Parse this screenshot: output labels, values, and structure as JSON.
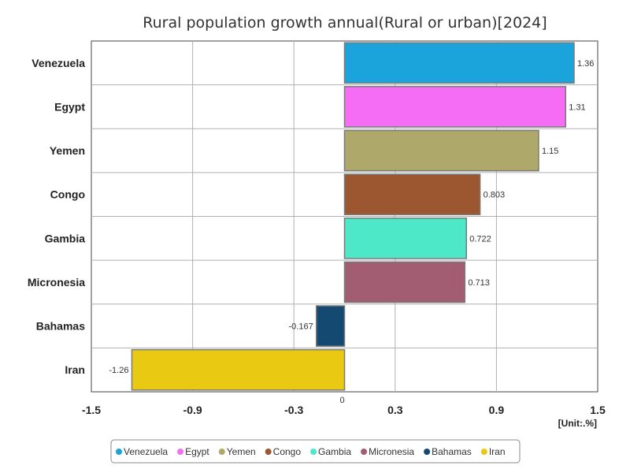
{
  "chart_data": {
    "type": "bar",
    "orientation": "horizontal",
    "title": "Rural population growth annual(Rural or urban)[2024]",
    "unit": "[Unit:.%]",
    "categories": [
      "Venezuela",
      "Egypt",
      "Yemen",
      "Congo",
      "Gambia",
      "Micronesia",
      "Bahamas",
      "Iran"
    ],
    "values": [
      1.36,
      1.31,
      1.15,
      0.803,
      0.722,
      0.713,
      -0.167,
      -1.26
    ],
    "value_labels": [
      "1.36",
      "1.31",
      "1.15",
      "0.803",
      "0.722",
      "0.713",
      "-0.167",
      "-1.26"
    ],
    "colors": [
      "#1ba3dc",
      "#f56cf5",
      "#aea86a",
      "#9c5630",
      "#4de8c8",
      "#a35d72",
      "#144a72",
      "#e9c912"
    ],
    "xlim": [
      -1.5,
      1.5
    ],
    "xticks": [
      -1.5,
      -0.9,
      -0.3,
      0,
      0.3,
      0.9,
      1.5
    ],
    "xtick_labels": [
      "-1.5",
      "-0.9",
      "-0.3",
      "0",
      "0.3",
      "0.9",
      "1.5"
    ],
    "grid": true,
    "legend_position": "bottom"
  }
}
